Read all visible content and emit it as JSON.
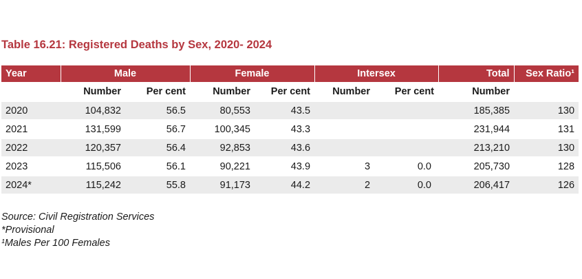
{
  "title": "Table 16.21: Registered Deaths by Sex, 2020- 2024",
  "header": {
    "year": "Year",
    "male": "Male",
    "female": "Female",
    "intersex": "Intersex",
    "total": "Total",
    "sex_ratio": "Sex Ratio¹"
  },
  "subheader": {
    "male_number": "Number",
    "male_percent": "Per cent",
    "female_number": "Number",
    "female_percent": "Per cent",
    "intersex_number": "Number",
    "intersex_percent": "Per cent",
    "total_number": "Number"
  },
  "rows": [
    {
      "year": "2020",
      "male_number": "104,832",
      "male_percent": "56.5",
      "female_number": "80,553",
      "female_percent": "43.5",
      "intersex_number": "",
      "intersex_percent": "",
      "total": "185,385",
      "sex_ratio": "130"
    },
    {
      "year": "2021",
      "male_number": "131,599",
      "male_percent": "56.7",
      "female_number": "100,345",
      "female_percent": "43.3",
      "intersex_number": "",
      "intersex_percent": "",
      "total": "231,944",
      "sex_ratio": "131"
    },
    {
      "year": "2022",
      "male_number": "120,357",
      "male_percent": "56.4",
      "female_number": "92,853",
      "female_percent": "43.6",
      "intersex_number": "",
      "intersex_percent": "",
      "total": "213,210",
      "sex_ratio": "130"
    },
    {
      "year": "2023",
      "male_number": "115,506",
      "male_percent": "56.1",
      "female_number": "90,221",
      "female_percent": "43.9",
      "intersex_number": "3",
      "intersex_percent": "0.0",
      "total": "205,730",
      "sex_ratio": "128"
    },
    {
      "year": "2024*",
      "male_number": "115,242",
      "male_percent": "55.8",
      "female_number": "91,173",
      "female_percent": "44.2",
      "intersex_number": "2",
      "intersex_percent": "0.0",
      "total": "206,417",
      "sex_ratio": "126"
    }
  ],
  "notes": {
    "source": "Source: Civil Registration Services",
    "provisional": "*Provisional",
    "footnote": "¹Males Per 100 Females"
  },
  "colors": {
    "header_bg": "#b5373f",
    "title": "#b5373f",
    "stripe": "#ebebeb"
  }
}
